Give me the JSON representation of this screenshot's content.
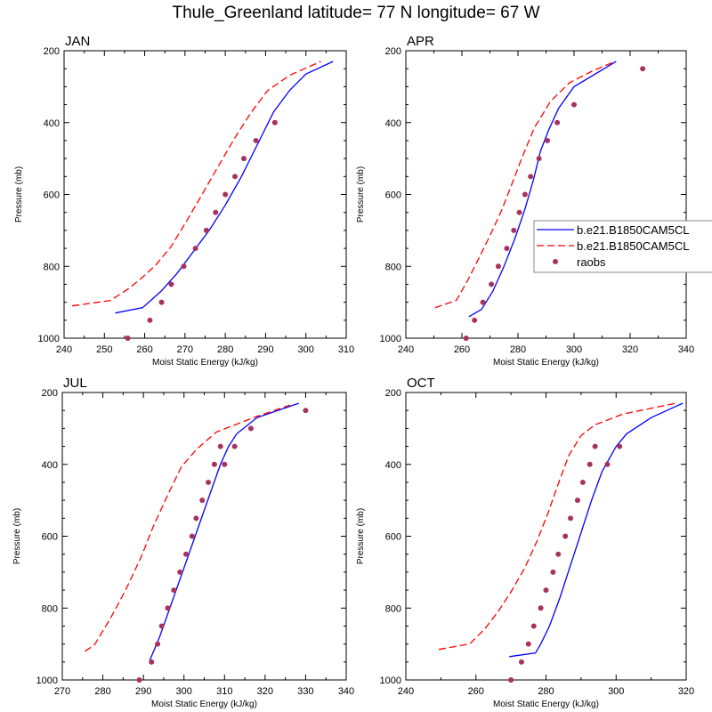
{
  "title": "Thule_Greenland  latitude= 77 N longitude= 67 W",
  "colors": {
    "model1": "#0000ff",
    "model2": "#ff0000",
    "raobs": "#a8325e"
  },
  "legend": [
    {
      "label": "b.e21.B1850CAM5CL",
      "style": "solid"
    },
    {
      "label": "b.e21.B1850CAM5CL",
      "style": "dashed"
    },
    {
      "label": "raobs",
      "style": "marker"
    }
  ],
  "chart_data": [
    {
      "type": "line",
      "title": "JAN",
      "xlabel": "Moist Static Energy (kJ/kg)",
      "ylabel": "Pressure (mb)",
      "xlim": [
        240,
        310
      ],
      "xticks": [
        240,
        250,
        260,
        270,
        280,
        290,
        300,
        310
      ],
      "ylim": [
        200,
        1000
      ],
      "yticks": [
        200,
        400,
        600,
        800,
        1000
      ],
      "y_inverted": true,
      "series": [
        {
          "name": "b.e21.B1850CAM5CL",
          "style": "solid",
          "x": [
            252.7,
            259.5,
            264,
            268,
            272,
            276,
            280,
            284,
            288,
            292,
            296,
            300,
            306.7
          ],
          "y": [
            930,
            915,
            870,
            820,
            760,
            700,
            630,
            550,
            460,
            370,
            310,
            265,
            230
          ]
        },
        {
          "name": "b.e21.B1850CAM5CL",
          "style": "dashed",
          "x": [
            242,
            251.5,
            256,
            259.5,
            262.7,
            266.5,
            270.5,
            274.7,
            278.6,
            282.4,
            286.4,
            290.5,
            296,
            303.7
          ],
          "y": [
            910,
            895,
            862,
            830,
            797,
            746,
            672,
            591,
            515,
            442,
            372,
            311,
            268,
            230
          ]
        },
        {
          "name": "raobs",
          "style": "marker",
          "x": [
            255.8,
            261.3,
            264.2,
            266.6,
            269.7,
            272.6,
            275.3,
            277.6,
            280.0,
            282.4,
            284.6,
            287.6,
            292.3
          ],
          "y": [
            1000,
            950,
            900,
            850,
            800,
            750,
            700,
            650,
            600,
            550,
            500,
            450,
            400
          ]
        }
      ]
    },
    {
      "type": "line",
      "title": "APR",
      "xlabel": "Moist Static Energy (kJ/kg)",
      "ylabel": "Pressure (mb)",
      "xlim": [
        240,
        340
      ],
      "xticks": [
        240,
        260,
        280,
        300,
        320,
        340
      ],
      "ylim": [
        200,
        1000
      ],
      "yticks": [
        200,
        400,
        600,
        800,
        1000
      ],
      "y_inverted": true,
      "series": [
        {
          "name": "b.e21.B1850CAM5CL",
          "style": "solid",
          "x": [
            262.5,
            267,
            271,
            275,
            279,
            282.5,
            285.5,
            288,
            291,
            294.5,
            300,
            315
          ],
          "y": [
            940,
            920,
            870,
            800,
            720,
            640,
            560,
            480,
            420,
            360,
            300,
            230
          ]
        },
        {
          "name": "b.e21.B1850CAM5CL",
          "style": "dashed",
          "x": [
            250.4,
            258,
            262,
            266,
            270,
            274,
            277.3,
            281.3,
            285.8,
            291.6,
            298.4,
            306.4,
            314.6
          ],
          "y": [
            915,
            895,
            840,
            778,
            715,
            647,
            582,
            500,
            415,
            341,
            289,
            257,
            230
          ]
        },
        {
          "name": "raobs",
          "style": "marker",
          "x": [
            261.5,
            264.5,
            267.5,
            270.5,
            273,
            276,
            278.5,
            280.5,
            282.5,
            284.5,
            287.5,
            290.5,
            294,
            300,
            324.5
          ],
          "y": [
            1000,
            950,
            900,
            850,
            800,
            750,
            700,
            650,
            600,
            550,
            500,
            450,
            400,
            350,
            250
          ]
        }
      ]
    },
    {
      "type": "line",
      "title": "JUL",
      "xlabel": "Moist Static Energy (kJ/kg)",
      "ylabel": "Pressure (mb)",
      "xlim": [
        270,
        340
      ],
      "xticks": [
        270,
        280,
        290,
        300,
        310,
        320,
        330,
        340
      ],
      "ylim": [
        200,
        1000
      ],
      "yticks": [
        200,
        400,
        600,
        800,
        1000
      ],
      "y_inverted": true,
      "series": [
        {
          "name": "b.e21.B1850CAM5CL",
          "style": "solid",
          "x": [
            291.6,
            294,
            296.5,
            299,
            301.5,
            304,
            306.5,
            309,
            311,
            313,
            318,
            328.3
          ],
          "y": [
            945,
            880,
            800,
            720,
            640,
            560,
            480,
            400,
            350,
            315,
            270,
            230
          ]
        },
        {
          "name": "b.e21.B1850CAM5CL",
          "style": "dashed",
          "x": [
            275.6,
            277.9,
            282,
            285.6,
            289.4,
            292.6,
            296.3,
            299.4,
            303.2,
            308,
            317.6,
            326.2
          ],
          "y": [
            920,
            903,
            826,
            750,
            659,
            568,
            478,
            406,
            357,
            310,
            268,
            235
          ]
        },
        {
          "name": "raobs",
          "style": "marker",
          "x": [
            289,
            292,
            293.5,
            294.5,
            296,
            297.5,
            299,
            300.5,
            302,
            303,
            304.5,
            306,
            307.5,
            309,
            310,
            312.5,
            316.5,
            330
          ],
          "y": [
            1000,
            950,
            900,
            850,
            800,
            750,
            700,
            650,
            600,
            550,
            500,
            450,
            400,
            350,
            400,
            350,
            300,
            250
          ]
        }
      ]
    },
    {
      "type": "line",
      "title": "OCT",
      "xlabel": "Moist Static Energy (kJ/kg)",
      "ylabel": "Pressure (mb)",
      "xlim": [
        240,
        320
      ],
      "xticks": [
        240,
        260,
        280,
        300,
        320
      ],
      "ylim": [
        200,
        1000
      ],
      "yticks": [
        200,
        400,
        600,
        800,
        1000
      ],
      "y_inverted": true,
      "series": [
        {
          "name": "b.e21.B1850CAM5CL",
          "style": "solid",
          "x": [
            269.5,
            277,
            278.5,
            281,
            284,
            287,
            290,
            293,
            296,
            300,
            303,
            310,
            319
          ],
          "y": [
            935,
            925,
            900,
            850,
            770,
            680,
            590,
            500,
            420,
            350,
            315,
            270,
            230
          ]
        },
        {
          "name": "b.e21.B1850CAM5CL",
          "style": "dashed",
          "x": [
            249.4,
            258.2,
            262.6,
            266.3,
            270,
            273.8,
            277.3,
            280.5,
            283.5,
            286.5,
            290,
            294,
            302,
            317
          ],
          "y": [
            915,
            900,
            857,
            810,
            755,
            691,
            616,
            537,
            454,
            375,
            320,
            290,
            260,
            230
          ]
        },
        {
          "name": "raobs",
          "style": "marker",
          "x": [
            270,
            273,
            275,
            276.5,
            278.5,
            280,
            282,
            283.5,
            285.5,
            287,
            289,
            290.5,
            292.5,
            294,
            297.5,
            301
          ],
          "y": [
            1000,
            950,
            900,
            850,
            800,
            750,
            700,
            650,
            600,
            550,
            500,
            450,
            400,
            350,
            400,
            350
          ]
        }
      ]
    }
  ]
}
